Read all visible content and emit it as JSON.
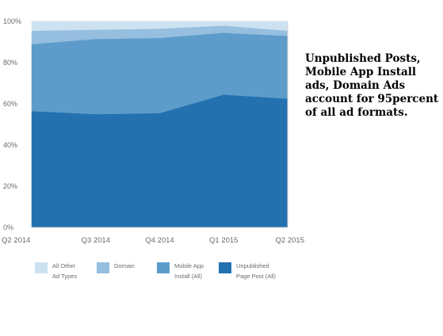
{
  "caption": "Unpublished Posts,\nMobile App Install\nads, Domain Ads\naccount for 95percent\nof all ad formats.",
  "chart_data": {
    "type": "area",
    "stacked": true,
    "categories": [
      "Q2 2014",
      "Q3 2014",
      "Q4 2014",
      "Q1 2015",
      "Q2 2015"
    ],
    "ylim": [
      0,
      100
    ],
    "yticks": [
      "0%",
      "20%",
      "40%",
      "60%",
      "80%",
      "100%"
    ],
    "grid": true,
    "legend_position": "bottom",
    "series": [
      {
        "label": "Unpublished Page Post (All)",
        "values": [
          56.5,
          55,
          55.5,
          64.5,
          62.5
        ],
        "color": "#2471b0"
      },
      {
        "label": "Mobile App Install (All)",
        "values": [
          32.5,
          36.5,
          36.5,
          30,
          30.5
        ],
        "color": "#5d9cca"
      },
      {
        "label": "Domain",
        "values": [
          6.5,
          4.5,
          4.5,
          3.5,
          2.5
        ],
        "color": "#96bedf"
      },
      {
        "label": "All Other Ad Types",
        "values": [
          4.5,
          4,
          3.5,
          2,
          4.5
        ],
        "color": "#cde2f1"
      }
    ],
    "legend": [
      {
        "line1": "All Other",
        "line2": "Ad Types",
        "color": "#cde2f1"
      },
      {
        "line1": "Domain",
        "line2": "",
        "color": "#96bedf"
      },
      {
        "line1": "Mobile App",
        "line2": "Install (All)",
        "color": "#5d9cca"
      },
      {
        "line1": "Unpublished",
        "line2": "Page Post (All)",
        "color": "#2471b0"
      }
    ]
  }
}
